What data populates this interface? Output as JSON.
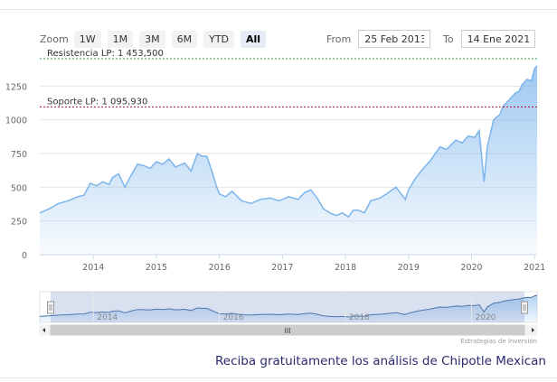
{
  "toolbar": {
    "zoom_label": "Zoom",
    "buttons": [
      {
        "label": "1W",
        "active": false
      },
      {
        "label": "1M",
        "active": false
      },
      {
        "label": "3M",
        "active": false
      },
      {
        "label": "6M",
        "active": false
      },
      {
        "label": "YTD",
        "active": false
      },
      {
        "label": "All",
        "active": true
      }
    ],
    "from_label": "From",
    "from_value": "25 Feb 2013",
    "to_label": "To",
    "to_value": "14 Ene 2021"
  },
  "chart_data": {
    "type": "area",
    "x_ticks": [
      2014,
      2015,
      2016,
      2017,
      2018,
      2019,
      2020,
      2021
    ],
    "y_ticks": [
      0,
      250,
      500,
      750,
      1000,
      1250
    ],
    "ylim": [
      0,
      1500
    ],
    "xlim": [
      2013.15,
      2021.04
    ],
    "grid": true,
    "series": [
      {
        "color": "#7cb5ec",
        "x": [
          2013.15,
          2013.3,
          2013.45,
          2013.6,
          2013.75,
          2013.85,
          2013.95,
          2014.05,
          2014.15,
          2014.25,
          2014.3,
          2014.4,
          2014.5,
          2014.6,
          2014.7,
          2014.8,
          2014.9,
          2015.0,
          2015.1,
          2015.2,
          2015.3,
          2015.45,
          2015.55,
          2015.65,
          2015.72,
          2015.8,
          2015.88,
          2015.95,
          2016.0,
          2016.1,
          2016.2,
          2016.35,
          2016.5,
          2016.65,
          2016.8,
          2016.95,
          2017.1,
          2017.25,
          2017.35,
          2017.45,
          2017.55,
          2017.65,
          2017.75,
          2017.85,
          2017.95,
          2018.05,
          2018.12,
          2018.2,
          2018.3,
          2018.4,
          2018.55,
          2018.65,
          2018.8,
          2018.9,
          2018.95,
          2019.0,
          2019.1,
          2019.2,
          2019.35,
          2019.5,
          2019.6,
          2019.75,
          2019.85,
          2019.95,
          2020.05,
          2020.12,
          2020.2,
          2020.25,
          2020.35,
          2020.45,
          2020.5,
          2020.6,
          2020.7,
          2020.75,
          2020.8,
          2020.88,
          2020.95,
          2021.0,
          2021.04
        ],
        "y": [
          310,
          340,
          380,
          400,
          430,
          440,
          530,
          510,
          540,
          520,
          570,
          600,
          500,
          590,
          670,
          660,
          640,
          690,
          670,
          710,
          650,
          680,
          620,
          750,
          730,
          730,
          620,
          510,
          450,
          430,
          470,
          400,
          380,
          410,
          420,
          400,
          430,
          410,
          460,
          480,
          420,
          340,
          310,
          290,
          310,
          280,
          330,
          330,
          310,
          400,
          420,
          450,
          500,
          440,
          410,
          480,
          560,
          620,
          700,
          800,
          780,
          850,
          830,
          880,
          870,
          920,
          540,
          800,
          1000,
          1040,
          1100,
          1150,
          1200,
          1210,
          1260,
          1300,
          1290,
          1380,
          1400
        ]
      }
    ],
    "annotations": [
      {
        "label": "Resistencia LP: 1 453,500",
        "value": 1453.5,
        "color": "#2e9e3e"
      },
      {
        "label": "Soporte LP: 1 095,930",
        "value": 1095.93,
        "color": "#c0102a"
      }
    ],
    "navigator": {
      "x_ticks": [
        2014,
        2016,
        2018,
        2020
      ],
      "scrollbar_grip": "III"
    }
  },
  "credits": "Estrategias de Inversión",
  "cta": "Reciba gratuitamente los análisis de Chipotle Mexican"
}
